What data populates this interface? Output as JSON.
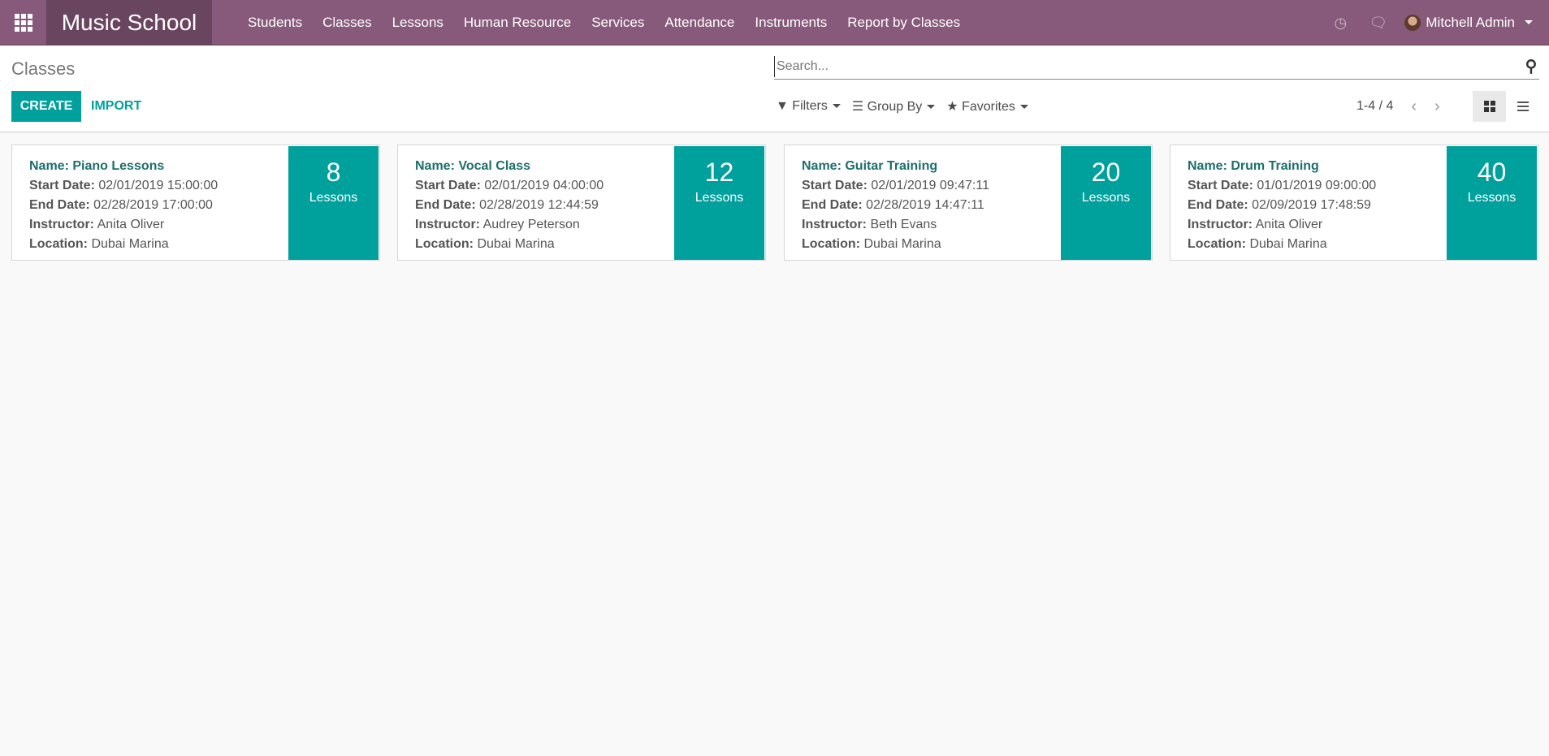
{
  "navbar": {
    "brand": "Music School",
    "menu": [
      "Students",
      "Classes",
      "Lessons",
      "Human Resource",
      "Services",
      "Attendance",
      "Instruments",
      "Report by Classes"
    ],
    "user": "Mitchell Admin"
  },
  "control_panel": {
    "title": "Classes",
    "create_label": "CREATE",
    "import_label": "IMPORT",
    "search_placeholder": "Search...",
    "filters_label": "Filters",
    "groupby_label": "Group By",
    "favorites_label": "Favorites",
    "pager": "1-4 / 4"
  },
  "labels": {
    "name": "Name:",
    "start": "Start Date:",
    "end": "End Date:",
    "instructor": "Instructor:",
    "location": "Location:",
    "lessons": "Lessons"
  },
  "cards": [
    {
      "name": "Piano Lessons",
      "start": "02/01/2019 15:00:00",
      "end": "02/28/2019 17:00:00",
      "instructor": "Anita Oliver",
      "location": "Dubai Marina",
      "lessons": "8"
    },
    {
      "name": "Vocal Class",
      "start": "02/01/2019 04:00:00",
      "end": "02/28/2019 12:44:59",
      "instructor": "Audrey Peterson",
      "location": "Dubai Marina",
      "lessons": "12"
    },
    {
      "name": "Guitar Training",
      "start": "02/01/2019 09:47:11",
      "end": "02/28/2019 14:47:11",
      "instructor": "Beth Evans",
      "location": "Dubai Marina",
      "lessons": "20"
    },
    {
      "name": "Drum Training",
      "start": "01/01/2019 09:00:00",
      "end": "02/09/2019 17:48:59",
      "instructor": "Anita Oliver",
      "location": "Dubai Marina",
      "lessons": "40"
    }
  ],
  "colors": {
    "navbar": "#875a7b",
    "brand_bg": "#6a4560",
    "accent": "#00a09d"
  }
}
